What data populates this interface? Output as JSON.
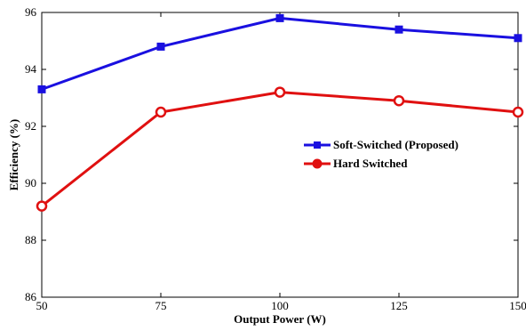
{
  "chart_data": {
    "type": "line",
    "title": "",
    "xlabel": "Output Power (W)",
    "ylabel": "Efficiency (%)",
    "x": [
      50,
      75,
      100,
      125,
      150
    ],
    "xlim": [
      50,
      150
    ],
    "ylim": [
      86,
      96
    ],
    "xticks": [
      "50",
      "75",
      "100",
      "125",
      "150"
    ],
    "yticks": [
      "86",
      "88",
      "90",
      "92",
      "94",
      "96"
    ],
    "grid": false,
    "legend_position": "center-right",
    "series": [
      {
        "name": "Soft-Switched (Proposed)",
        "values": [
          93.3,
          94.8,
          95.8,
          95.4,
          95.1
        ],
        "color": "#1a10e0",
        "marker": "square"
      },
      {
        "name": "Hard Switched",
        "values": [
          89.2,
          92.5,
          93.2,
          92.9,
          92.5
        ],
        "color": "#e01010",
        "marker": "circle"
      }
    ]
  }
}
